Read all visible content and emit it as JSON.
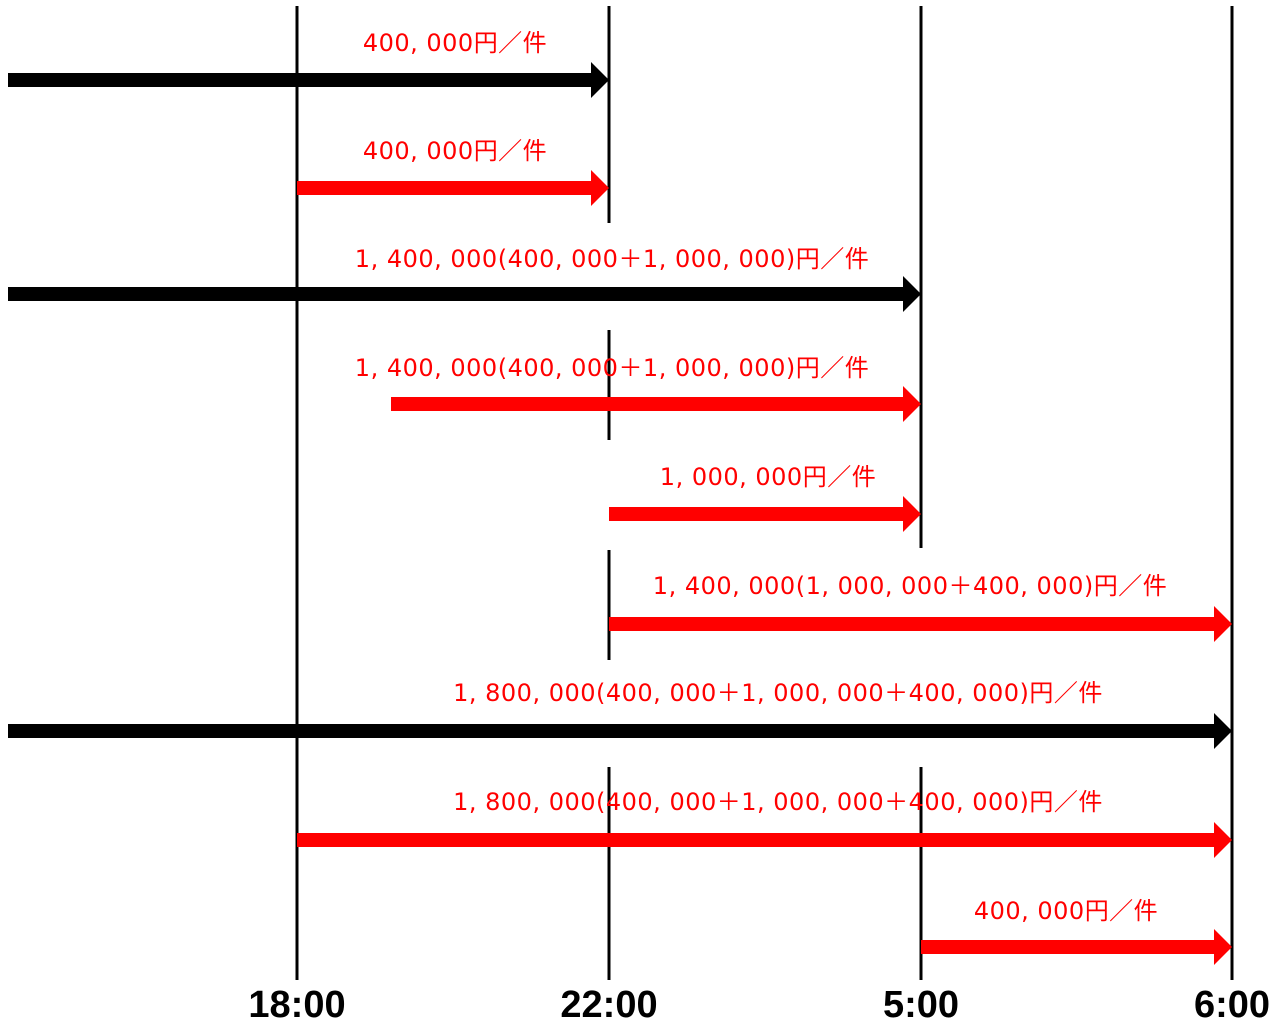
{
  "colors": {
    "red": "#ff0000",
    "black": "#000000",
    "background": "#ffffff"
  },
  "time_markers": [
    {
      "id": "t1800",
      "label": "18:00"
    },
    {
      "id": "t2200",
      "label": "22:00"
    },
    {
      "id": "t0500",
      "label": "5:00"
    },
    {
      "id": "t0600",
      "label": "6:00"
    }
  ],
  "rows": [
    {
      "label": "400, 000円／件",
      "color": "black",
      "start": "before",
      "end": "t2200"
    },
    {
      "label": "400, 000円／件",
      "color": "red",
      "start": "t1800",
      "end": "t2200"
    },
    {
      "label": "1, 400, 000(400, 000＋1, 000, 000)円／件",
      "color": "black",
      "start": "before",
      "end": "t0500"
    },
    {
      "label": "1, 400, 000(400, 000＋1, 000, 000)円／件",
      "color": "red",
      "start": "between-1800-2200",
      "end": "t0500"
    },
    {
      "label": "1, 000, 000円／件",
      "color": "red",
      "start": "t2200",
      "end": "t0500"
    },
    {
      "label": "1, 400, 000(1, 000, 000＋400, 000)円／件",
      "color": "red",
      "start": "t2200",
      "end": "t0600"
    },
    {
      "label": "1, 800, 000(400, 000＋1, 000, 000＋400, 000)円／件",
      "color": "black",
      "start": "before",
      "end": "t0600"
    },
    {
      "label": "1, 800, 000(400, 000＋1, 000, 000＋400, 000)円／件",
      "color": "red",
      "start": "t1800",
      "end": "t0600"
    },
    {
      "label": "400, 000円／件",
      "color": "red",
      "start": "t0500",
      "end": "t0600"
    }
  ]
}
